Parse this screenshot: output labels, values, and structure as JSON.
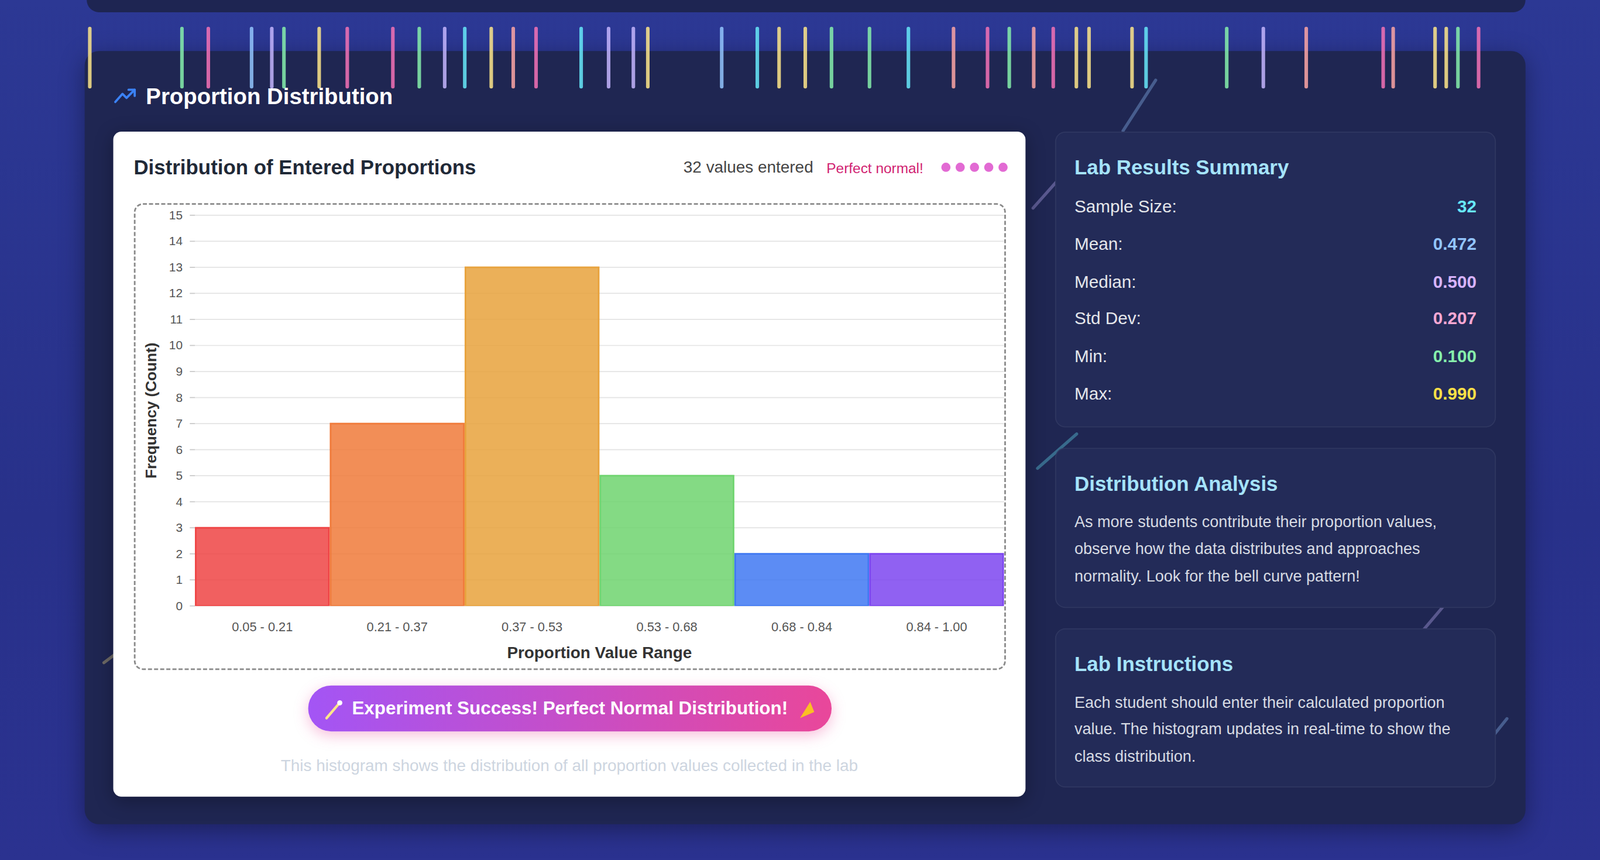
{
  "page": {
    "section_title": "Proportion Distribution",
    "count_text": "32 values entered",
    "status_text": "Perfect normal!",
    "banner": "Experiment Success! Perfect Normal Distribution!",
    "caption": "This histogram shows the distribution of all proportion values collected in the lab",
    "summary": {
      "title": "Lab Results Summary",
      "rows": [
        {
          "label": "Sample Size:",
          "value": "32"
        },
        {
          "label": "Mean:",
          "value": "0.472"
        },
        {
          "label": "Median:",
          "value": "0.500"
        },
        {
          "label": "Std Dev:",
          "value": "0.207"
        },
        {
          "label": "Min:",
          "value": "0.100"
        },
        {
          "label": "Max:",
          "value": "0.990"
        }
      ]
    },
    "analysis": {
      "title": "Distribution Analysis",
      "text": "As more students contribute their proportion values, observe how the data distributes and approaches normality. Look for the bell curve pattern!"
    },
    "instructions": {
      "title": "Lab Instructions",
      "text": "Each student should enter their calculated proportion value. The histogram updates in real-time to show the class distribution."
    }
  },
  "chart_data": {
    "type": "bar",
    "title": "Distribution of Entered Proportions",
    "categories": [
      "0.05 - 0.21",
      "0.21 - 0.37",
      "0.37 - 0.53",
      "0.53 - 0.68",
      "0.68 - 0.84",
      "0.84 - 1.00"
    ],
    "values": [
      3,
      7,
      13,
      5,
      2,
      2
    ],
    "colors": [
      "#ef4444",
      "#f07a3a",
      "#e8a23c",
      "#6fd46f",
      "#3f78f2",
      "#7c45f0"
    ],
    "x_label": "Proportion Value Range",
    "y_label": "Frequency (Count)",
    "ylim": [
      0,
      15
    ],
    "yticks": [
      0,
      1,
      2,
      3,
      4,
      5,
      6,
      7,
      8,
      9,
      10,
      11,
      12,
      13,
      14,
      15
    ],
    "grid": true
  }
}
